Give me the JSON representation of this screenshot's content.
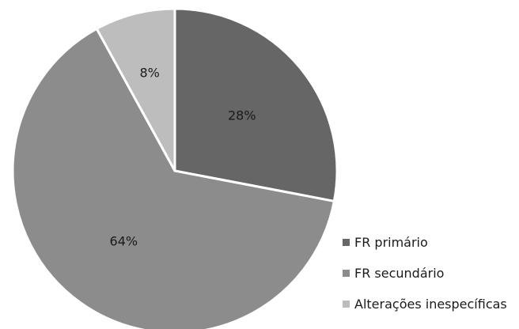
{
  "chart_data": {
    "type": "pie",
    "categories": [
      "FR primário",
      "FR secundário",
      "Alterações inespecíficas"
    ],
    "values": [
      28,
      64,
      8
    ],
    "data_labels": [
      "28%",
      "64%",
      "8%"
    ],
    "colors": [
      "#666666",
      "#8c8c8c",
      "#bdbdbd"
    ],
    "slice_border_color": "#ffffff",
    "start_angle_deg": 0,
    "direction": "clockwise",
    "legend_position": "bottom-right"
  }
}
